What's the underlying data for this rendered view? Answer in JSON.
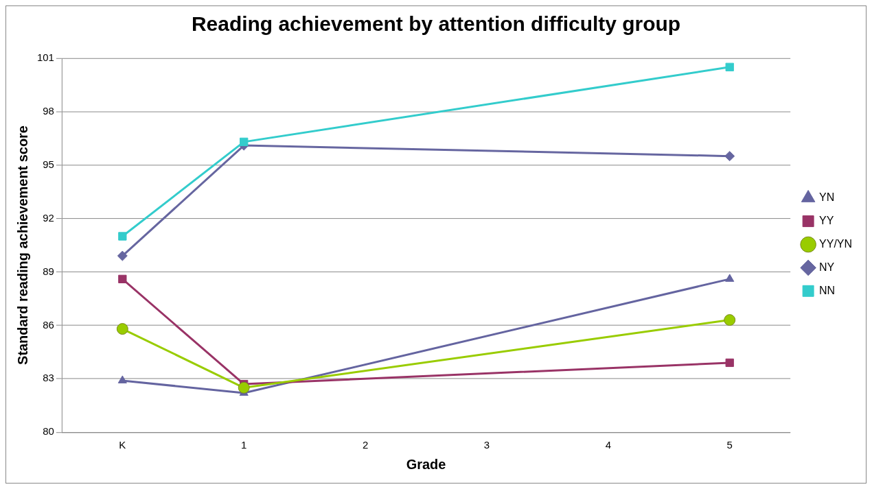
{
  "chart_data": {
    "type": "line",
    "title": "Reading achievement by attention difficulty group",
    "xlabel": "Grade",
    "ylabel": "Standard reading achievement score",
    "categories": [
      "K",
      "1",
      "2",
      "3",
      "4",
      "5"
    ],
    "series": [
      {
        "name": "YN",
        "color": "#6464a0",
        "marker": "triangle",
        "values": [
          82.9,
          82.2,
          null,
          null,
          null,
          88.6
        ]
      },
      {
        "name": "YY",
        "color": "#993366",
        "marker": "square",
        "values": [
          88.6,
          82.7,
          null,
          null,
          null,
          83.9
        ]
      },
      {
        "name": "YY/YN",
        "color": "#99cc00",
        "marker": "circle",
        "values": [
          85.8,
          82.5,
          null,
          null,
          null,
          86.3
        ]
      },
      {
        "name": "NY",
        "color": "#6666a0",
        "marker": "diamond",
        "values": [
          89.9,
          96.1,
          null,
          null,
          null,
          95.5
        ]
      },
      {
        "name": "NN",
        "color": "#33cccc",
        "marker": "square",
        "values": [
          91.0,
          96.3,
          null,
          null,
          null,
          100.5
        ]
      }
    ],
    "ylim": [
      80,
      101
    ],
    "yticks": [
      80,
      83,
      86,
      89,
      92,
      95,
      98,
      101
    ],
    "grid": "y",
    "legend": "right",
    "line_style": "solid"
  }
}
